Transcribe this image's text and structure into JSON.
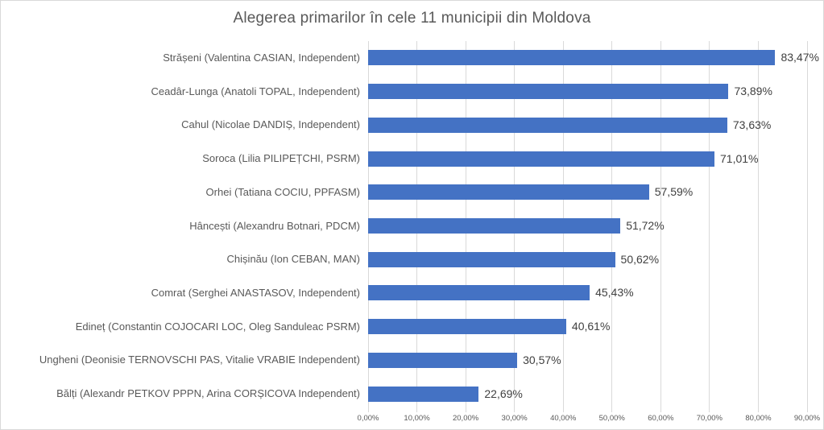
{
  "chart_data": {
    "type": "bar",
    "orientation": "horizontal",
    "title": "Alegerea primarilor în cele 11 municipii din Moldova",
    "categories": [
      "Strășeni (Valentina CASIAN, Independent)",
      "Ceadâr-Lunga (Anatoli TOPAL, Independent)",
      "Cahul (Nicolae DANDIȘ, Independent)",
      "Soroca (Lilia PILIPEȚCHI, PSRM)",
      "Orhei (Tatiana COCIU, PPFASM)",
      "Hâncești (Alexandru Botnari, PDCM)",
      "Chișinău (Ion CEBAN, MAN)",
      "Comrat (Serghei ANASTASOV, Independent)",
      "Edineț (Constantin COJOCARI LOC, Oleg Sanduleac PSRM)",
      "Ungheni (Deonisie TERNOVSCHI PAS, Vitalie VRABIE Independent)",
      "Bălți (Alexandr PETKOV PPPN, Arina CORȘICOVA Independent)"
    ],
    "values": [
      83.47,
      73.89,
      73.63,
      71.01,
      57.59,
      51.72,
      50.62,
      45.43,
      40.61,
      30.57,
      22.69
    ],
    "value_labels": [
      "83,47%",
      "73,89%",
      "73,63%",
      "71,01%",
      "57,59%",
      "51,72%",
      "50,62%",
      "45,43%",
      "40,61%",
      "30,57%",
      "22,69%"
    ],
    "x_ticks": [
      "0,00%",
      "10,00%",
      "20,00%",
      "30,00%",
      "40,00%",
      "50,00%",
      "60,00%",
      "70,00%",
      "80,00%",
      "90,00%"
    ],
    "x_tick_values": [
      0,
      10,
      20,
      30,
      40,
      50,
      60,
      70,
      80,
      90
    ],
    "xlim": [
      0,
      90
    ],
    "xlabel": "",
    "ylabel": "",
    "legend": "none",
    "grid": "vertical",
    "bar_color": "#4472c4",
    "gridline_color": "#d9d9d9",
    "title_color": "#595959",
    "axis_label_color": "#595959",
    "data_label_color": "#404040"
  }
}
